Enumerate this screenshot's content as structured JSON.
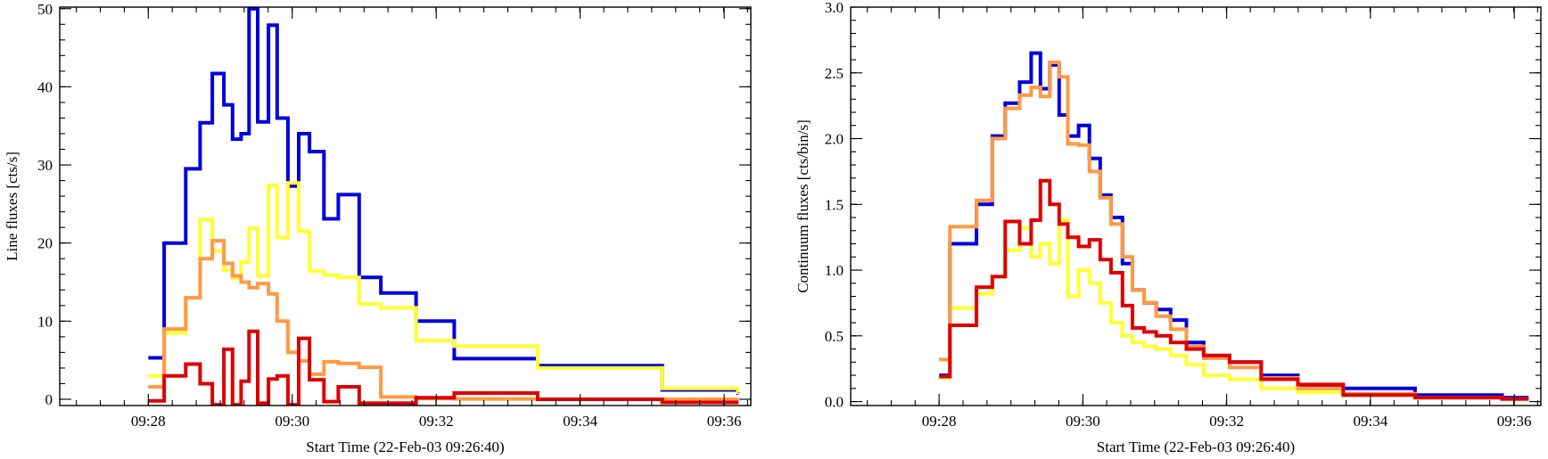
{
  "chart_data": [
    {
      "type": "line",
      "step": true,
      "title": "",
      "xlabel": "Start Time (22-Feb-03 09:26:40)",
      "ylabel": "Line fluxes [cts/s]",
      "xlim": [
        0.1,
        9.7
      ],
      "ylim": [
        -0.8,
        50.2
      ],
      "xticks": [
        {
          "value": 1.33,
          "label": "09:28"
        },
        {
          "value": 3.33,
          "label": "09:30"
        },
        {
          "value": 5.33,
          "label": "09:32"
        },
        {
          "value": 7.33,
          "label": "09:34"
        },
        {
          "value": 9.33,
          "label": "09:36"
        }
      ],
      "x_minor_step": 0.333,
      "yticks": [
        {
          "value": 0,
          "label": "0"
        },
        {
          "value": 10,
          "label": "10"
        },
        {
          "value": 20,
          "label": "20"
        },
        {
          "value": 30,
          "label": "30"
        },
        {
          "value": 40,
          "label": "40"
        },
        {
          "value": 50,
          "label": "50"
        }
      ],
      "y_minor_step": 2,
      "grid": false,
      "series": [
        {
          "color": "#0000dd",
          "x": [
            1.33,
            1.55,
            1.85,
            2.05,
            2.22,
            2.38,
            2.5,
            2.62,
            2.73,
            2.85,
            3.0,
            3.12,
            3.27,
            3.42,
            3.57,
            3.77,
            3.97,
            4.26,
            4.56,
            5.05,
            5.58,
            6.74,
            8.47,
            9.52
          ],
          "y": [
            5.3,
            20,
            29.5,
            35.4,
            41.7,
            37.7,
            33.3,
            34,
            50,
            35.5,
            47.9,
            36,
            27.3,
            34,
            31.7,
            23.1,
            26.2,
            15.6,
            13.6,
            10,
            5.2,
            4.3,
            1.2,
            0.8
          ]
        },
        {
          "color": "#ffff33",
          "x": [
            1.33,
            1.55,
            1.85,
            2.05,
            2.22,
            2.38,
            2.5,
            2.62,
            2.73,
            2.85,
            3.0,
            3.12,
            3.27,
            3.42,
            3.57,
            3.77,
            3.97,
            4.26,
            4.56,
            5.05,
            5.58,
            6.74,
            8.47,
            9.52
          ],
          "y": [
            3,
            8.5,
            13,
            23,
            19,
            16.5,
            15.5,
            17.6,
            21.9,
            15.8,
            27.4,
            20.7,
            27.7,
            21.5,
            16.4,
            15.9,
            15.6,
            12.2,
            11.7,
            7.5,
            6.8,
            4,
            1.4,
            0.9
          ]
        },
        {
          "color": "#ff9944",
          "x": [
            1.33,
            1.55,
            1.85,
            2.05,
            2.22,
            2.38,
            2.5,
            2.62,
            2.73,
            2.85,
            3.0,
            3.12,
            3.27,
            3.42,
            3.57,
            3.77,
            3.97,
            4.26,
            4.56,
            5.05,
            5.58,
            6.74,
            8.47,
            9.52
          ],
          "y": [
            1.6,
            9,
            13,
            18,
            20.3,
            17.4,
            15.8,
            15,
            14.3,
            14.8,
            13.5,
            10,
            6,
            4.9,
            3.2,
            4.8,
            4.6,
            4.1,
            0.3,
            0.1,
            0.05,
            0,
            0,
            0
          ]
        },
        {
          "color": "#dd0000",
          "x": [
            1.33,
            1.55,
            1.85,
            2.05,
            2.22,
            2.38,
            2.5,
            2.62,
            2.73,
            2.85,
            3.0,
            3.12,
            3.27,
            3.42,
            3.57,
            3.77,
            3.97,
            4.26,
            4.56,
            5.05,
            5.58,
            6.74,
            8.47,
            9.52
          ],
          "y": [
            -0.2,
            3,
            4.5,
            2,
            -0.7,
            6.4,
            -0.7,
            2.3,
            8.7,
            -0.5,
            2.6,
            3,
            -0.7,
            7.8,
            2.5,
            -0.3,
            1.6,
            -0.5,
            -0.5,
            0.2,
            0.8,
            0,
            -0.4,
            -0.4
          ]
        }
      ]
    },
    {
      "type": "line",
      "step": true,
      "title": "",
      "xlabel": "Start Time (22-Feb-03 09:26:40)",
      "ylabel": "Continuum fluxes [cts/bin/s]",
      "xlim": [
        0.1,
        9.7
      ],
      "ylim": [
        -0.03,
        3.0
      ],
      "xticks": [
        {
          "value": 1.33,
          "label": "09:28"
        },
        {
          "value": 3.33,
          "label": "09:30"
        },
        {
          "value": 5.33,
          "label": "09:32"
        },
        {
          "value": 7.33,
          "label": "09:34"
        },
        {
          "value": 9.33,
          "label": "09:36"
        }
      ],
      "x_minor_step": 0.333,
      "yticks": [
        {
          "value": 0,
          "label": "0.0"
        },
        {
          "value": 0.5,
          "label": "0.5"
        },
        {
          "value": 1.0,
          "label": "1.0"
        },
        {
          "value": 1.5,
          "label": "1.5"
        },
        {
          "value": 2.0,
          "label": "2.0"
        },
        {
          "value": 2.5,
          "label": "2.5"
        },
        {
          "value": 3.0,
          "label": "3.0"
        }
      ],
      "y_minor_step": 0.1,
      "grid": false,
      "series": [
        {
          "color": "#0000dd",
          "x": [
            1.33,
            1.48,
            1.85,
            2.07,
            2.25,
            2.45,
            2.61,
            2.74,
            2.87,
            3.0,
            3.12,
            3.27,
            3.42,
            3.57,
            3.72,
            3.88,
            4.02,
            4.18,
            4.35,
            4.55,
            4.77,
            5.01,
            5.37,
            5.81,
            6.32,
            6.95,
            7.95,
            9.16
          ],
          "y": [
            0.2,
            1.2,
            1.5,
            2.02,
            2.27,
            2.43,
            2.65,
            2.38,
            2.56,
            2.18,
            2.02,
            2.1,
            1.85,
            1.57,
            1.4,
            1.05,
            0.85,
            0.75,
            0.7,
            0.62,
            0.45,
            0.35,
            0.3,
            0.2,
            0.12,
            0.1,
            0.05,
            0.03
          ]
        },
        {
          "color": "#ffff33",
          "x": [
            1.33,
            1.48,
            1.85,
            2.07,
            2.25,
            2.45,
            2.61,
            2.74,
            2.87,
            3.0,
            3.12,
            3.27,
            3.42,
            3.57,
            3.72,
            3.88,
            4.02,
            4.18,
            4.35,
            4.55,
            4.77,
            5.01,
            5.37,
            5.81,
            6.32,
            6.95,
            7.95,
            9.16
          ],
          "y": [
            0.18,
            0.71,
            0.82,
            0.95,
            1.15,
            1.32,
            1.1,
            1.2,
            1.05,
            1.38,
            0.8,
            1.0,
            0.9,
            0.75,
            0.6,
            0.5,
            0.45,
            0.42,
            0.4,
            0.35,
            0.28,
            0.2,
            0.17,
            0.1,
            0.07,
            0.05,
            0.03,
            0.02
          ]
        },
        {
          "color": "#ff9944",
          "x": [
            1.33,
            1.48,
            1.85,
            2.07,
            2.25,
            2.45,
            2.61,
            2.74,
            2.87,
            3.0,
            3.12,
            3.27,
            3.42,
            3.57,
            3.72,
            3.88,
            4.02,
            4.18,
            4.35,
            4.55,
            4.77,
            5.01,
            5.37,
            5.81,
            6.32,
            6.95,
            7.95,
            9.16
          ],
          "y": [
            0.32,
            1.33,
            1.53,
            2.0,
            2.23,
            2.33,
            2.39,
            2.32,
            2.58,
            2.47,
            1.96,
            1.95,
            1.75,
            1.55,
            1.35,
            1.1,
            0.85,
            0.75,
            0.65,
            0.55,
            0.42,
            0.33,
            0.26,
            0.18,
            0.1,
            0.06,
            0.03,
            0.02
          ]
        },
        {
          "color": "#dd0000",
          "x": [
            1.33,
            1.48,
            1.85,
            2.07,
            2.25,
            2.45,
            2.61,
            2.74,
            2.87,
            3.0,
            3.12,
            3.27,
            3.42,
            3.57,
            3.72,
            3.88,
            4.02,
            4.18,
            4.35,
            4.55,
            4.77,
            5.01,
            5.37,
            5.81,
            6.32,
            6.95,
            7.95,
            9.16
          ],
          "y": [
            0.19,
            0.58,
            0.87,
            0.95,
            1.37,
            1.2,
            1.38,
            1.68,
            1.5,
            1.35,
            1.25,
            1.18,
            1.23,
            1.08,
            0.98,
            0.73,
            0.56,
            0.53,
            0.5,
            0.45,
            0.4,
            0.35,
            0.3,
            0.17,
            0.13,
            0.05,
            0.03,
            0.02
          ]
        }
      ]
    }
  ]
}
